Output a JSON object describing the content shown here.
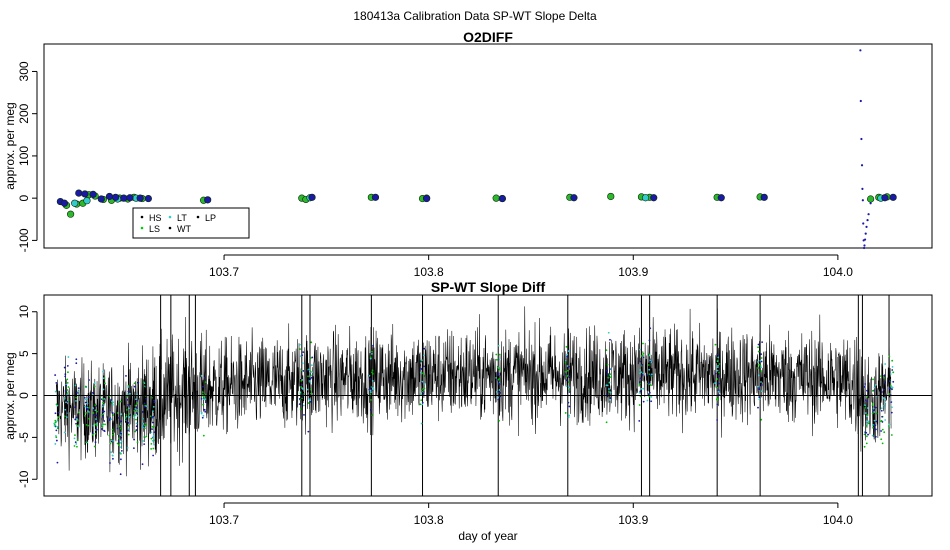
{
  "figure": {
    "suptitle": "180413a   Calibration Data SP-WT Slope Delta"
  },
  "chart_data": [
    {
      "type": "scatter",
      "title": "O2DIFF",
      "ylabel": "approx. per meg",
      "xlabel": "",
      "xlim": [
        103.612,
        104.046
      ],
      "ylim": [
        -118,
        365
      ],
      "x_ticks": [
        "103.7",
        "103.8",
        "103.9",
        "104.0"
      ],
      "x_tick_values": [
        103.7,
        103.8,
        103.9,
        104.0
      ],
      "y_ticks": [
        "-100",
        "0",
        "100",
        "200",
        "300"
      ],
      "y_tick_values": [
        -100,
        0,
        100,
        200,
        300
      ],
      "grid": false,
      "legend_position": "bottom-left",
      "legend": [
        {
          "label": "HS",
          "color": "#000000"
        },
        {
          "label": "LS",
          "color": "#00cc00"
        },
        {
          "label": "LT",
          "color": "#33cccc"
        },
        {
          "label": "WT",
          "color": "#000000"
        },
        {
          "label": "LP",
          "color": "#000000"
        }
      ],
      "series": [
        {
          "name": "LS",
          "color": "#2db82d",
          "marker": "circle",
          "points": [
            [
              103.623,
              -17
            ],
            [
              103.625,
              -38
            ],
            [
              103.628,
              -14
            ],
            [
              103.631,
              -12
            ],
            [
              103.634,
              8
            ],
            [
              103.637,
              5
            ],
            [
              103.641,
              -3
            ],
            [
              103.645,
              -5
            ],
            [
              103.649,
              0
            ],
            [
              103.653,
              -2
            ],
            [
              103.656,
              2
            ],
            [
              103.66,
              -1
            ],
            [
              103.69,
              -5
            ],
            [
              103.738,
              0
            ],
            [
              103.74,
              -3
            ],
            [
              103.772,
              2
            ],
            [
              103.797,
              -1
            ],
            [
              103.833,
              0
            ],
            [
              103.869,
              2
            ],
            [
              103.889,
              4
            ],
            [
              103.904,
              3
            ],
            [
              103.908,
              2
            ],
            [
              103.941,
              2
            ],
            [
              103.962,
              3
            ],
            [
              104.016,
              -2
            ],
            [
              104.02,
              2
            ],
            [
              104.024,
              3
            ]
          ]
        },
        {
          "name": "LT",
          "color": "#33cccc",
          "marker": "circle",
          "points": [
            [
              103.627,
              -12
            ],
            [
              103.633,
              -6
            ],
            [
              103.648,
              -2
            ],
            [
              103.657,
              0
            ],
            [
              103.742,
              1
            ],
            [
              103.799,
              0
            ],
            [
              103.836,
              -1
            ],
            [
              103.906,
              1
            ],
            [
              104.021,
              0
            ]
          ]
        },
        {
          "name": "HS",
          "color": "#1a1aa6",
          "marker": "circle",
          "points": [
            [
              103.62,
              -8
            ],
            [
              103.622,
              -12
            ],
            [
              103.629,
              12
            ],
            [
              103.632,
              10
            ],
            [
              103.636,
              9
            ],
            [
              103.64,
              -2
            ],
            [
              103.644,
              4
            ],
            [
              103.647,
              2
            ],
            [
              103.651,
              0
            ],
            [
              103.654,
              1
            ],
            [
              103.659,
              0
            ],
            [
              103.663,
              -1
            ],
            [
              103.692,
              -4
            ],
            [
              103.743,
              2
            ],
            [
              103.774,
              2
            ],
            [
              103.799,
              -1
            ],
            [
              103.836,
              -1
            ],
            [
              103.871,
              1
            ],
            [
              103.91,
              1
            ],
            [
              103.943,
              1
            ],
            [
              103.964,
              2
            ],
            [
              104.023,
              1
            ],
            [
              104.027,
              2
            ]
          ]
        },
        {
          "name": "WT",
          "color": "#1a1aa6",
          "marker": "dot",
          "points": [
            [
              104.011,
              350
            ],
            [
              104.0112,
              230
            ],
            [
              104.0115,
              140
            ],
            [
              104.0118,
              78
            ],
            [
              104.012,
              22
            ],
            [
              104.0122,
              -5
            ],
            [
              104.0124,
              -60
            ],
            [
              104.0126,
              -100
            ],
            [
              104.0128,
              -118
            ],
            [
              104.013,
              -112
            ],
            [
              104.0133,
              -98
            ],
            [
              104.0136,
              -84
            ],
            [
              104.014,
              -68
            ],
            [
              104.0145,
              -52
            ],
            [
              104.015,
              -38
            ],
            [
              104.016,
              -12
            ]
          ]
        }
      ]
    },
    {
      "type": "line",
      "title": "SP-WT Slope Diff",
      "ylabel": "approx. per meg",
      "xlabel": "day of year",
      "xlim": [
        103.612,
        104.046
      ],
      "ylim": [
        -12,
        12
      ],
      "x_ticks": [
        "103.7",
        "103.8",
        "103.9",
        "104.0"
      ],
      "x_tick_values": [
        103.7,
        103.8,
        103.9,
        104.0
      ],
      "y_ticks": [
        "-10",
        "-5",
        "0",
        "5",
        "10"
      ],
      "y_tick_values": [
        -10,
        -5,
        0,
        5,
        10
      ],
      "reference_line_y": 0,
      "grid": false,
      "noise_profile": {
        "x": [
          103.618,
          103.64,
          103.665,
          103.68,
          103.7,
          103.75,
          103.8,
          103.85,
          103.9,
          103.95,
          104.0,
          104.01,
          104.015,
          104.026
        ],
        "mean": [
          -1.5,
          -2.0,
          -1.0,
          0.5,
          1.0,
          2.0,
          2.5,
          2.5,
          2.5,
          2.5,
          2.0,
          1.0,
          -1.0,
          1.0
        ],
        "spread": [
          4.0,
          4.0,
          5.0,
          5.0,
          4.0,
          4.0,
          4.0,
          4.0,
          4.0,
          4.0,
          4.0,
          5.0,
          4.0,
          4.0
        ]
      },
      "spikes_x": [
        103.669,
        103.674,
        103.683,
        103.686,
        103.738,
        103.742,
        103.772,
        103.797,
        103.834,
        103.868,
        103.904,
        103.908,
        103.941,
        103.962,
        104.01,
        104.012,
        104.025
      ],
      "calibration_bursts": [
        {
          "x": 103.618,
          "mean": -3.0
        },
        {
          "x": 103.623,
          "mean": 1.0
        },
        {
          "x": 103.628,
          "mean": -2.0
        },
        {
          "x": 103.633,
          "mean": -1.5
        },
        {
          "x": 103.637,
          "mean": -3.0
        },
        {
          "x": 103.641,
          "mean": -1.0
        },
        {
          "x": 103.645,
          "mean": -3.5
        },
        {
          "x": 103.649,
          "mean": -4.0
        },
        {
          "x": 103.653,
          "mean": -1.5
        },
        {
          "x": 103.657,
          "mean": -2.0
        },
        {
          "x": 103.661,
          "mean": -3.0
        },
        {
          "x": 103.665,
          "mean": -3.0
        },
        {
          "x": 103.69,
          "mean": -1.0
        },
        {
          "x": 103.738,
          "mean": 2.0
        },
        {
          "x": 103.742,
          "mean": 1.5
        },
        {
          "x": 103.772,
          "mean": 2.0
        },
        {
          "x": 103.797,
          "mean": 1.0
        },
        {
          "x": 103.834,
          "mean": 2.0
        },
        {
          "x": 103.868,
          "mean": 2.0
        },
        {
          "x": 103.888,
          "mean": 1.5
        },
        {
          "x": 103.904,
          "mean": 2.0
        },
        {
          "x": 103.908,
          "mean": 3.0
        },
        {
          "x": 103.941,
          "mean": 2.0
        },
        {
          "x": 103.962,
          "mean": 2.0
        },
        {
          "x": 104.014,
          "mean": -2.5
        },
        {
          "x": 104.018,
          "mean": -2.0
        },
        {
          "x": 104.022,
          "mean": -1.0
        },
        {
          "x": 104.026,
          "mean": 0.0
        }
      ],
      "series": [
        {
          "name": "",
          "color": "#000000"
        }
      ]
    }
  ]
}
